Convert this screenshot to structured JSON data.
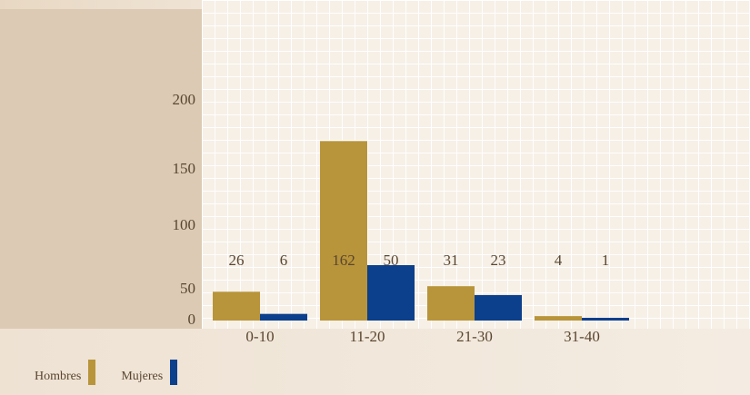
{
  "colors": {
    "hombres": "#b8953a",
    "mujeres": "#0c3f8c",
    "text": "#5a4630"
  },
  "chart_data": {
    "type": "bar",
    "title": "",
    "xlabel": "",
    "ylabel": "",
    "categories": [
      "0-10",
      "11-20",
      "21-30",
      "31-40"
    ],
    "series": [
      {
        "name": "Hombres",
        "values": [
          26,
          162,
          31,
          4
        ]
      },
      {
        "name": "Mujeres",
        "values": [
          6,
          50,
          23,
          1
        ]
      }
    ],
    "yticks": [
      0,
      50,
      100,
      150,
      200
    ],
    "ylim": [
      0,
      200
    ],
    "grid": true,
    "legend_position": "bottom-left",
    "data_labels_shown": true
  }
}
